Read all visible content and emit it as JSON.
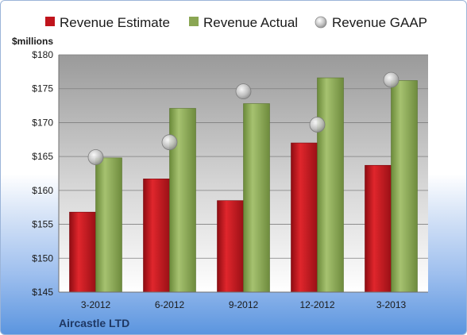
{
  "chart_data": {
    "type": "bar",
    "categories": [
      "3-2012",
      "6-2012",
      "9-2012",
      "12-2012",
      "3-2013"
    ],
    "series": [
      {
        "name": "Revenue Estimate",
        "kind": "bar",
        "color": "#c0141c",
        "values": [
          156.8,
          161.7,
          158.5,
          167.0,
          163.7
        ]
      },
      {
        "name": "Revenue Actual",
        "kind": "bar",
        "color": "#8aa653",
        "values": [
          164.8,
          172.1,
          172.8,
          176.6,
          176.2
        ]
      },
      {
        "name": "Revenue GAAP",
        "kind": "point",
        "color": "#b9b9b9",
        "values": [
          164.9,
          167.1,
          174.6,
          169.7,
          176.3
        ]
      }
    ],
    "ylabel": "$millions",
    "ylim": [
      145,
      180
    ],
    "yticks": [
      145,
      150,
      155,
      160,
      165,
      170,
      175,
      180
    ],
    "ytick_labels": [
      "$145",
      "$150",
      "$155",
      "$160",
      "$165",
      "$170",
      "$175",
      "$180"
    ],
    "grid": true,
    "legend_position": "top",
    "footer": "Aircastle LTD"
  }
}
